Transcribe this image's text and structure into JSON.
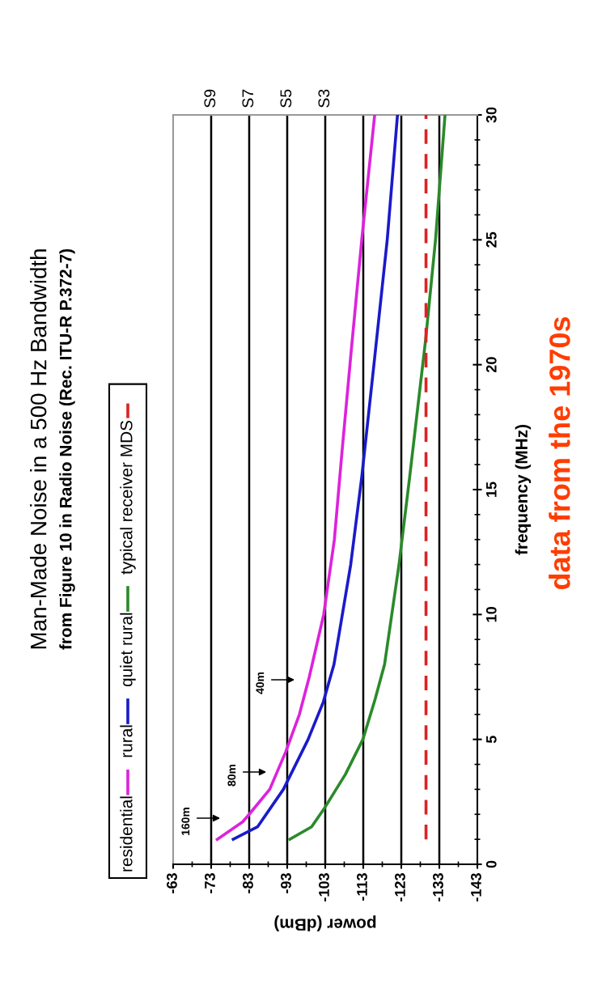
{
  "chart_data": {
    "type": "line",
    "title": "Man-Made Noise in a 500 Hz Bandwidth",
    "subtitle": "from Figure 10 in Radio Noise (Rec. ITU-R P.372-7)",
    "xlabel": "power (dBm)",
    "ylabel": "frequency (MHz)",
    "xlim": [
      -63,
      -143
    ],
    "xticks": [
      -63,
      -73,
      -83,
      -93,
      -103,
      -113,
      -123,
      -133,
      -143
    ],
    "ylim": [
      0,
      30
    ],
    "yticks": [
      0,
      5,
      10,
      15,
      20,
      25,
      30
    ],
    "ref_lines": [
      {
        "axis": "x",
        "value": -73,
        "label": "S9"
      },
      {
        "axis": "x",
        "value": -83,
        "label": "S7"
      },
      {
        "axis": "x",
        "value": -93,
        "label": "S5"
      },
      {
        "axis": "x",
        "value": -103,
        "label": "S3"
      },
      {
        "axis": "x",
        "value": -113
      },
      {
        "axis": "x",
        "value": -123
      },
      {
        "axis": "x",
        "value": -133
      }
    ],
    "legend": "left",
    "line_style": "solid",
    "series": [
      {
        "name": "residential",
        "color": "#dd22dd",
        "values": [
          1,
          1.7,
          2,
          3,
          4.5,
          6,
          7.5,
          10,
          13,
          16.5,
          20.5,
          25,
          30
        ],
        "x": [
          -74.6,
          -81.3,
          -83,
          -88.4,
          -92.6,
          -96.2,
          -98.8,
          -102.6,
          -105.4,
          -107.4,
          -109.8,
          -112.6,
          -116
        ]
      },
      {
        "name": "rural",
        "color": "#1a1acc",
        "values": [
          1,
          1.5,
          3,
          5,
          6.5,
          8,
          12,
          15.5,
          20,
          25,
          30
        ],
        "x": [
          -78.8,
          -85.2,
          -92,
          -98.5,
          -102.5,
          -105.3,
          -109.7,
          -112.6,
          -115.8,
          -119.3,
          -122
        ]
      },
      {
        "name": "quiet rural",
        "color": "#2a8a2a",
        "values": [
          1,
          1.5,
          2.2,
          3.6,
          5,
          6.6,
          8,
          12,
          15.5,
          21,
          25,
          30
        ],
        "x": [
          -93.7,
          -99.4,
          -102.6,
          -108.3,
          -112.9,
          -116.1,
          -118.6,
          -122.4,
          -125.2,
          -129.4,
          -132,
          -134.5
        ]
      },
      {
        "name": "typical receiver MDS",
        "color": "#dd2222",
        "line_style": "dashed",
        "values": [
          1,
          30
        ],
        "x": [
          -129.5,
          -129.5
        ]
      }
    ],
    "annotations": [
      "160m",
      "80m",
      "40m",
      "data from the 1970s"
    ]
  }
}
